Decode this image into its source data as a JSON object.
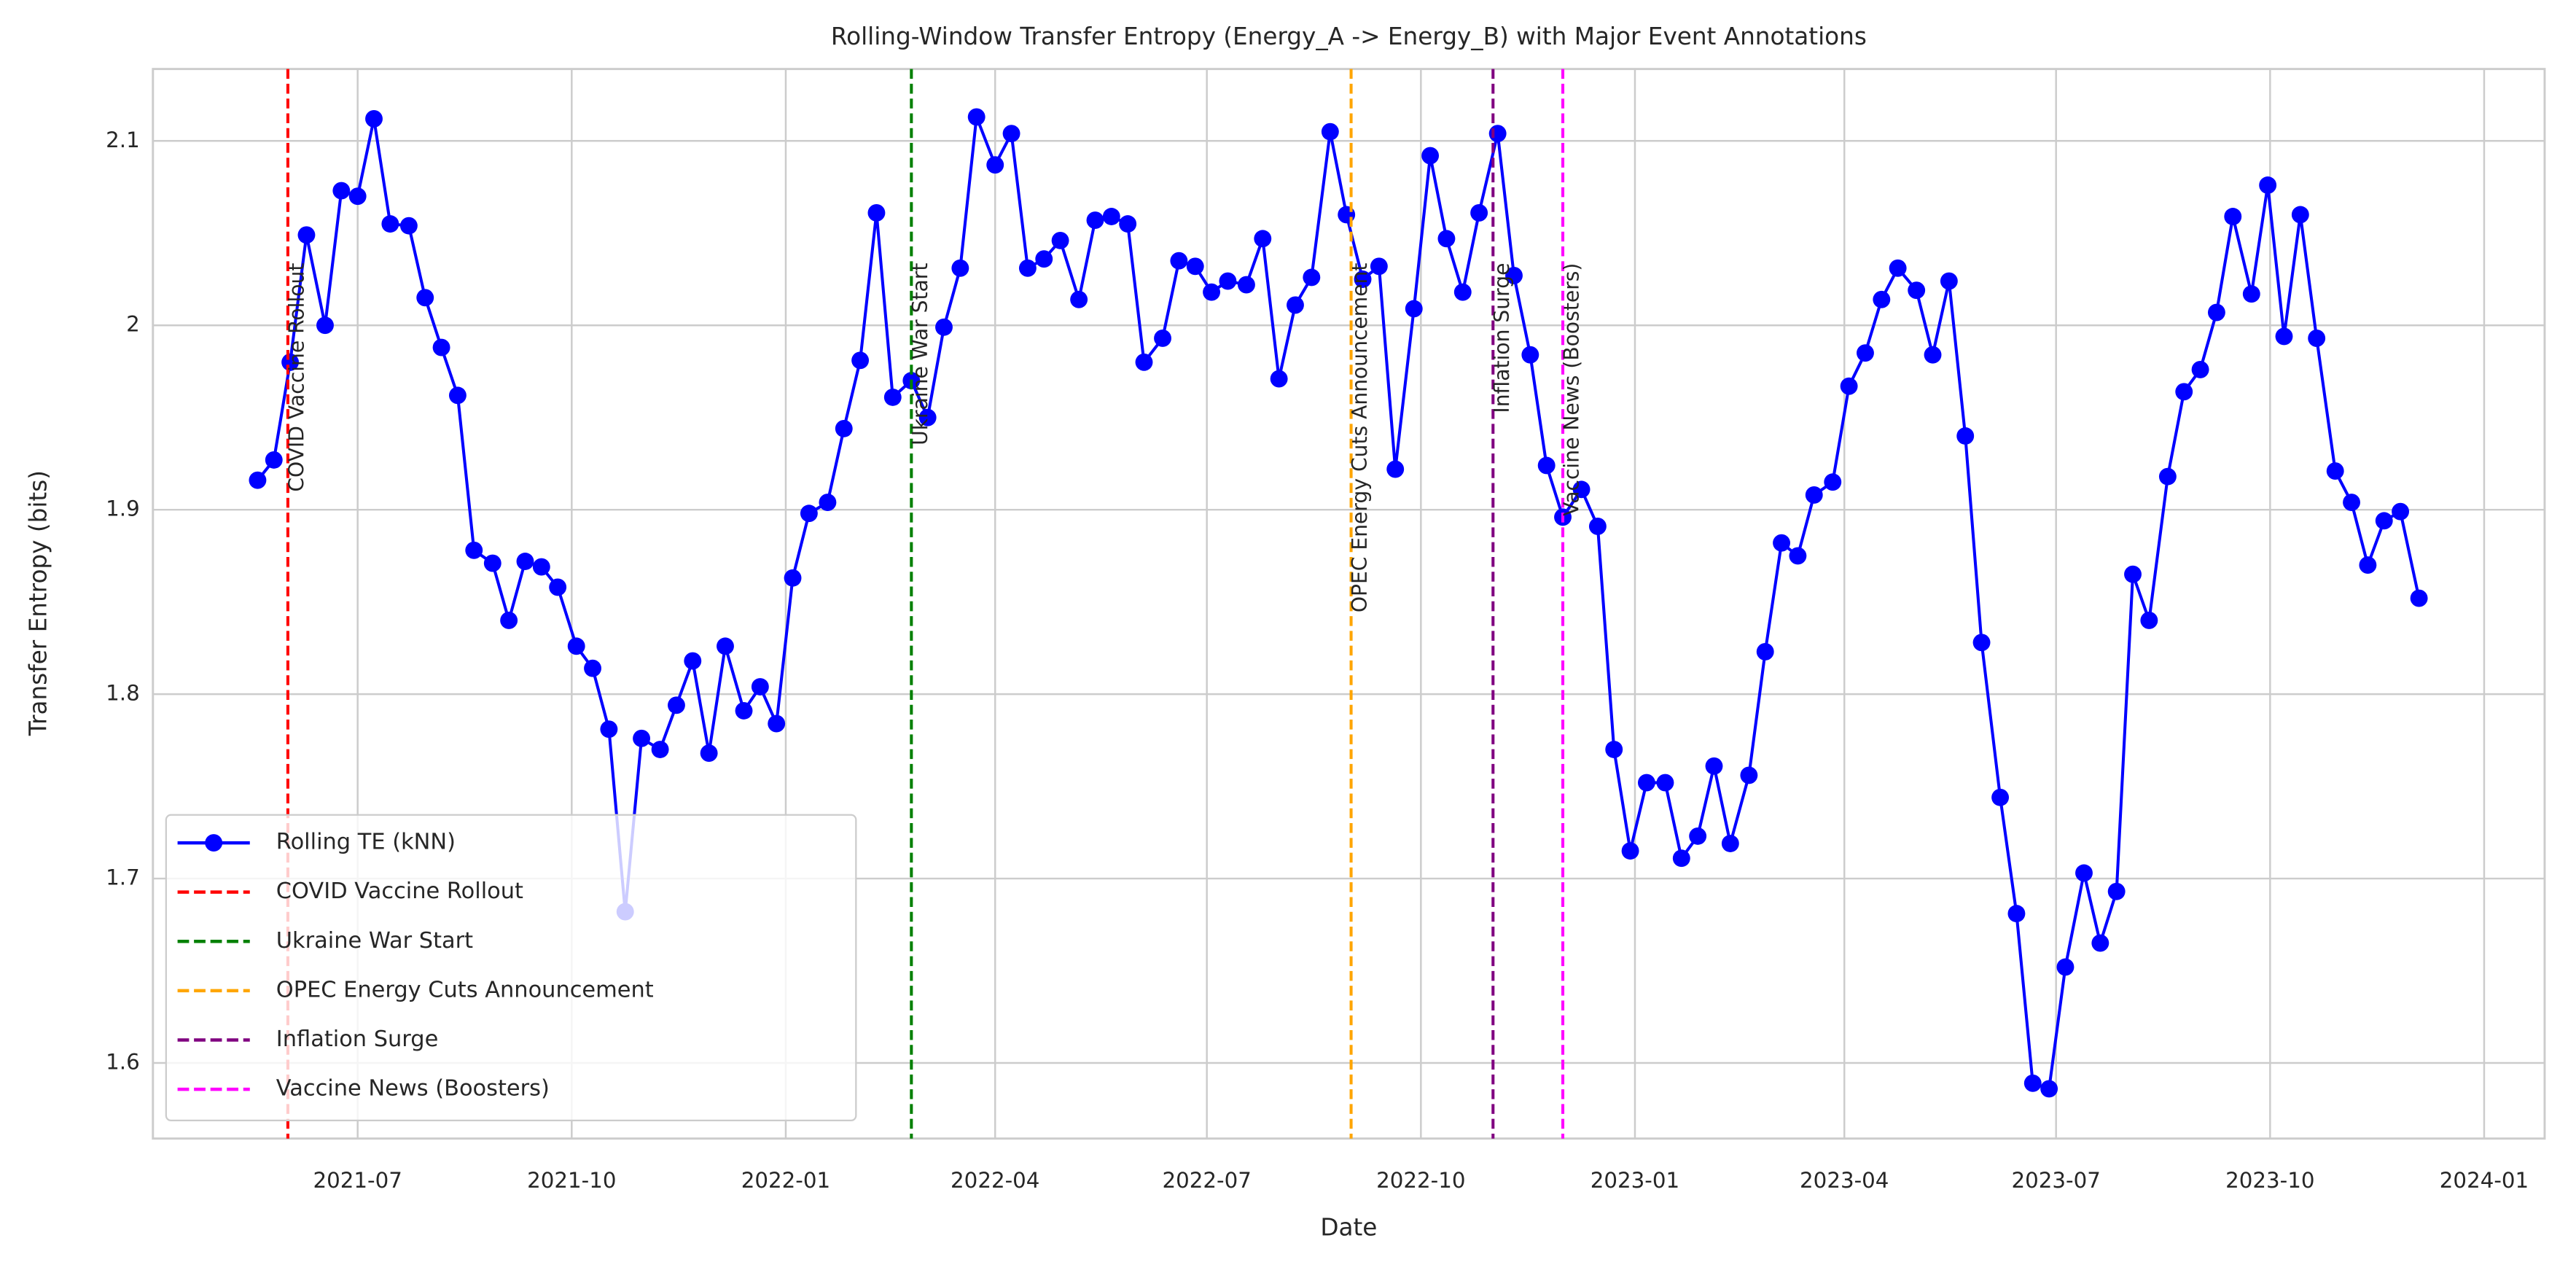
{
  "chart_data": {
    "type": "line",
    "title": "Rolling-Window Transfer Entropy (Energy_A -> Energy_B) with Major Event Annotations",
    "xlabel": "Date",
    "ylabel": "Transfer Entropy (bits)",
    "x": [
      "2021-05-19",
      "2021-05-26",
      "2021-06-02",
      "2021-06-09",
      "2021-06-17",
      "2021-06-24",
      "2021-07-01",
      "2021-07-08",
      "2021-07-15",
      "2021-07-23",
      "2021-07-30",
      "2021-08-06",
      "2021-08-13",
      "2021-08-20",
      "2021-08-28",
      "2021-09-04",
      "2021-09-11",
      "2021-09-18",
      "2021-09-25",
      "2021-10-03",
      "2021-10-10",
      "2021-10-17",
      "2021-10-24",
      "2021-10-31",
      "2021-11-08",
      "2021-11-15",
      "2021-11-22",
      "2021-11-29",
      "2021-12-06",
      "2021-12-14",
      "2021-12-21",
      "2021-12-28",
      "2022-01-04",
      "2022-01-11",
      "2022-01-19",
      "2022-01-26",
      "2022-02-02",
      "2022-02-09",
      "2022-02-16",
      "2022-02-24",
      "2022-03-03",
      "2022-03-10",
      "2022-03-17",
      "2022-03-24",
      "2022-04-01",
      "2022-04-08",
      "2022-04-15",
      "2022-04-22",
      "2022-04-29",
      "2022-05-07",
      "2022-05-14",
      "2022-05-21",
      "2022-05-28",
      "2022-06-04",
      "2022-06-12",
      "2022-06-19",
      "2022-06-26",
      "2022-07-03",
      "2022-07-10",
      "2022-07-18",
      "2022-07-25",
      "2022-08-01",
      "2022-08-08",
      "2022-08-15",
      "2022-08-23",
      "2022-08-30",
      "2022-09-06",
      "2022-09-13",
      "2022-09-20",
      "2022-09-28",
      "2022-10-05",
      "2022-10-12",
      "2022-10-19",
      "2022-10-26",
      "2022-11-03",
      "2022-11-10",
      "2022-11-17",
      "2022-11-24",
      "2022-12-01",
      "2022-12-09",
      "2022-12-16",
      "2022-12-23",
      "2022-12-30",
      "2023-01-06",
      "2023-01-14",
      "2023-01-21",
      "2023-01-28",
      "2023-02-04",
      "2023-02-11",
      "2023-02-19",
      "2023-02-26",
      "2023-03-05",
      "2023-03-12",
      "2023-03-19",
      "2023-03-27",
      "2023-04-03",
      "2023-04-10",
      "2023-04-17",
      "2023-04-24",
      "2023-05-02",
      "2023-05-09",
      "2023-05-16",
      "2023-05-23",
      "2023-05-30",
      "2023-06-07",
      "2023-06-14",
      "2023-06-21",
      "2023-06-28",
      "2023-07-05",
      "2023-07-13",
      "2023-07-20",
      "2023-07-27",
      "2023-08-03",
      "2023-08-10",
      "2023-08-18",
      "2023-08-25",
      "2023-09-01",
      "2023-09-08",
      "2023-09-15",
      "2023-09-23",
      "2023-09-30",
      "2023-10-07",
      "2023-10-14",
      "2023-10-21",
      "2023-10-29",
      "2023-11-05",
      "2023-11-12",
      "2023-11-19",
      "2023-11-26",
      "2023-12-04"
    ],
    "series": [
      {
        "name": "Rolling TE (kNN)",
        "color": "#0000ff",
        "values": [
          1.916,
          1.927,
          1.98,
          2.049,
          2.0,
          2.073,
          2.07,
          2.112,
          2.055,
          2.054,
          2.015,
          1.988,
          1.962,
          1.878,
          1.871,
          1.84,
          1.872,
          1.869,
          1.858,
          1.826,
          1.814,
          1.781,
          1.682,
          1.776,
          1.77,
          1.794,
          1.818,
          1.768,
          1.826,
          1.791,
          1.804,
          1.784,
          1.863,
          1.898,
          1.904,
          1.944,
          1.981,
          2.061,
          1.961,
          1.97,
          1.95,
          1.999,
          2.031,
          2.113,
          2.087,
          2.104,
          2.031,
          2.036,
          2.046,
          2.014,
          2.057,
          2.059,
          2.055,
          1.98,
          1.993,
          2.035,
          2.032,
          2.018,
          2.024,
          2.022,
          2.047,
          1.971,
          2.011,
          2.026,
          2.105,
          2.06,
          2.025,
          2.032,
          1.922,
          2.009,
          2.092,
          2.047,
          2.018,
          2.061,
          2.104,
          2.027,
          1.984,
          1.924,
          1.896,
          1.911,
          1.891,
          1.77,
          1.715,
          1.752,
          1.752,
          1.711,
          1.723,
          1.761,
          1.719,
          1.756,
          1.823,
          1.882,
          1.875,
          1.908,
          1.915,
          1.967,
          1.985,
          2.014,
          2.031,
          2.019,
          1.984,
          2.024,
          1.94,
          1.828,
          1.744,
          1.681,
          1.589,
          1.586,
          1.652,
          1.703,
          1.665,
          1.693,
          1.865,
          1.84,
          1.918,
          1.964,
          1.976,
          2.007,
          2.059,
          2.017,
          2.076,
          1.994,
          2.06,
          1.993,
          1.921,
          1.904,
          1.87,
          1.894,
          1.899,
          1.852
        ]
      }
    ],
    "events": [
      {
        "name": "COVID Vaccine Rollout",
        "date": "2021-06-01",
        "color": "#ff0000"
      },
      {
        "name": "Ukraine War Start",
        "date": "2022-02-24",
        "color": "#008000"
      },
      {
        "name": "OPEC Energy Cuts Announcement",
        "date": "2022-09-01",
        "color": "#ffa500"
      },
      {
        "name": "Inflation Surge",
        "date": "2022-11-01",
        "color": "#800080"
      },
      {
        "name": "Vaccine News (Boosters)",
        "date": "2022-12-01",
        "color": "#ff00ff"
      }
    ],
    "xlim": [
      "2021-04-04",
      "2024-01-27"
    ],
    "xticks": [
      {
        "value": "2021-07-01",
        "label": "2021-07"
      },
      {
        "value": "2021-10-01",
        "label": "2021-10"
      },
      {
        "value": "2022-01-01",
        "label": "2022-01"
      },
      {
        "value": "2022-04-01",
        "label": "2022-04"
      },
      {
        "value": "2022-07-01",
        "label": "2022-07"
      },
      {
        "value": "2022-10-01",
        "label": "2022-10"
      },
      {
        "value": "2023-01-01",
        "label": "2023-01"
      },
      {
        "value": "2023-04-01",
        "label": "2023-04"
      },
      {
        "value": "2023-07-01",
        "label": "2023-07"
      },
      {
        "value": "2023-10-01",
        "label": "2023-10"
      },
      {
        "value": "2024-01-01",
        "label": "2024-01"
      }
    ],
    "ylim": [
      1.559,
      2.139
    ],
    "yticks": [
      1.6,
      1.7,
      1.8,
      1.9,
      2.0,
      2.1
    ],
    "grid": true,
    "legend": "lower left"
  }
}
